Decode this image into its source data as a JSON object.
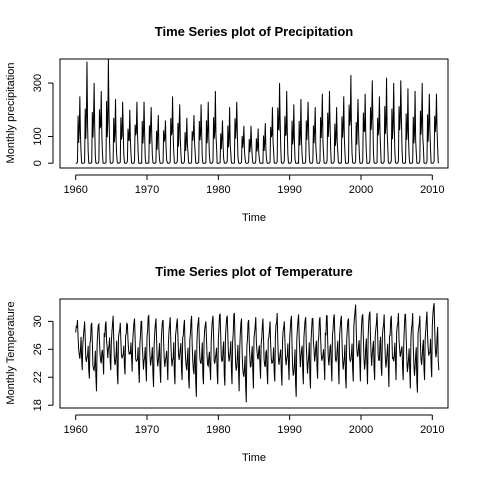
{
  "chart_data": [
    {
      "type": "line",
      "title": "Time Series plot of Precipitation",
      "xlabel": "Time",
      "ylabel": "Monthly precipitation",
      "xlim": [
        1957.8,
        2012.2
      ],
      "ylim": [
        -18,
        390
      ],
      "x_ticks": [
        1960,
        1970,
        1980,
        1990,
        2000,
        2010
      ],
      "y_ticks": [
        0,
        100,
        300
      ],
      "start_year": 1960,
      "end_year": 2011,
      "series": [
        {
          "annual_peaks": [
            250,
            380,
            300,
            270,
            390,
            240,
            230,
            200,
            230,
            230,
            210,
            180,
            160,
            250,
            220,
            170,
            180,
            220,
            230,
            270,
            160,
            210,
            230,
            140,
            140,
            130,
            150,
            210,
            300,
            270,
            220,
            240,
            230,
            210,
            260,
            270,
            210,
            250,
            330,
            240,
            260,
            310,
            250,
            320,
            300,
            310,
            280,
            270,
            300,
            260,
            260
          ],
          "annual_secondary_peaks": [
            180,
            220,
            200,
            210,
            240,
            170,
            180,
            140,
            160,
            170,
            150,
            130,
            130,
            170,
            160,
            120,
            130,
            160,
            170,
            190,
            120,
            150,
            170,
            110,
            100,
            100,
            110,
            150,
            210,
            190,
            160,
            170,
            170,
            150,
            190,
            200,
            150,
            180,
            220,
            170,
            190,
            220,
            180,
            230,
            210,
            220,
            200,
            190,
            210,
            190,
            190
          ]
        }
      ]
    },
    {
      "type": "line",
      "title": "Time Series plot of Temperature",
      "xlabel": "Time",
      "ylabel": "Monthly Temperature",
      "xlim": [
        1957.8,
        2012.2
      ],
      "ylim": [
        17.6,
        33.2
      ],
      "x_ticks": [
        1960,
        1970,
        1980,
        1990,
        2000,
        2010
      ],
      "y_ticks": [
        18,
        22,
        26,
        30
      ],
      "start_year": 1960,
      "end_year": 2011,
      "series": [
        {
          "annual_max": [
            30.2,
            30.0,
            29.8,
            29.6,
            30.0,
            30.8,
            29.8,
            29.6,
            30.4,
            30.0,
            30.8,
            30.4,
            30.2,
            30.6,
            30.4,
            30.2,
            30.8,
            30.6,
            30.0,
            30.8,
            31.0,
            30.8,
            31.2,
            30.4,
            30.2,
            30.6,
            30.4,
            30.0,
            31.2,
            30.0,
            30.8,
            31.0,
            30.6,
            30.4,
            30.6,
            30.8,
            31.0,
            30.8,
            30.4,
            32.4,
            31.0,
            31.4,
            31.2,
            31.0,
            30.8,
            31.2,
            31.0,
            31.2,
            30.8,
            31.4,
            32.6
          ],
          "annual_min": [
            23.0,
            21.8,
            20.0,
            22.4,
            23.0,
            21.0,
            22.4,
            22.8,
            21.2,
            21.4,
            20.6,
            21.2,
            21.6,
            21.0,
            21.6,
            20.4,
            19.2,
            21.0,
            21.6,
            21.0,
            20.8,
            21.0,
            20.0,
            18.4,
            20.4,
            21.8,
            21.0,
            21.4,
            20.8,
            21.6,
            19.2,
            21.0,
            20.4,
            21.8,
            21.6,
            21.4,
            21.0,
            20.4,
            21.4,
            21.4,
            21.0,
            21.6,
            22.2,
            20.6,
            21.6,
            21.6,
            20.4,
            19.8,
            21.6,
            22.0,
            23.0
          ]
        }
      ]
    }
  ]
}
